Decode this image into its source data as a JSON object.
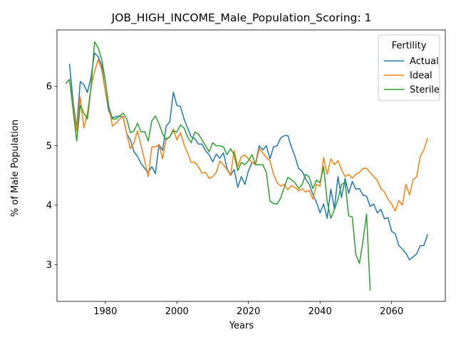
{
  "chart_data": {
    "type": "line",
    "title": "JOB_HIGH_INCOME_Male_Population_Scoring: 1",
    "xlabel": "Years",
    "ylabel": "% of Male Population",
    "xlim": [
      1966.5,
      2075
    ],
    "ylim": [
      2.38,
      6.95
    ],
    "xticks": [
      1980,
      2000,
      2020,
      2040,
      2060
    ],
    "yticks": [
      3,
      4,
      5,
      6
    ],
    "grid": false,
    "legend": {
      "title": "Fertility",
      "placement": "top-right"
    },
    "series": [
      {
        "name": "Actual",
        "color": "#1f77b4",
        "x": [
          1970,
          1971,
          1972,
          1973,
          1974,
          1975,
          1976,
          1977,
          1978,
          1979,
          1980,
          1981,
          1982,
          1983,
          1984,
          1985,
          1986,
          1987,
          1988,
          1989,
          1990,
          1991,
          1992,
          1993,
          1994,
          1995,
          1996,
          1997,
          1998,
          1999,
          2000,
          2001,
          2002,
          2003,
          2004,
          2005,
          2006,
          2007,
          2008,
          2009,
          2010,
          2011,
          2012,
          2013,
          2014,
          2015,
          2016,
          2017,
          2018,
          2019,
          2020,
          2021,
          2022,
          2023,
          2024,
          2025,
          2026,
          2027,
          2028,
          2029,
          2030,
          2031,
          2032,
          2033,
          2034,
          2035,
          2036,
          2037,
          2038,
          2039,
          2040,
          2041,
          2042,
          2043,
          2044,
          2045,
          2046,
          2047,
          2048,
          2049,
          2050,
          2051,
          2052,
          2053,
          2054,
          2055,
          2056,
          2057,
          2058,
          2059,
          2060,
          2061,
          2062,
          2063,
          2064,
          2065,
          2066,
          2067,
          2068,
          2069,
          2070
        ],
        "values": [
          6.37,
          5.75,
          5.3,
          6.08,
          6.03,
          5.9,
          6.15,
          6.56,
          6.5,
          6.35,
          5.92,
          5.58,
          5.47,
          5.49,
          5.5,
          5.48,
          5.2,
          5.1,
          4.9,
          4.82,
          4.7,
          4.62,
          4.55,
          4.65,
          4.53,
          5.02,
          4.92,
          5.33,
          5.4,
          5.9,
          5.68,
          5.66,
          5.45,
          5.3,
          5.15,
          5.12,
          5.03,
          5.03,
          4.92,
          4.85,
          4.73,
          4.86,
          4.79,
          4.88,
          4.62,
          4.5,
          4.6,
          4.3,
          4.48,
          4.35,
          4.58,
          4.72,
          4.7,
          5.0,
          4.93,
          5.0,
          4.78,
          4.98,
          5.0,
          5.13,
          5.17,
          5.17,
          4.98,
          4.82,
          4.62,
          4.57,
          4.44,
          4.35,
          4.18,
          4.05,
          3.87,
          4.02,
          3.78,
          4.27,
          3.94,
          4.48,
          4.13,
          4.45,
          4.2,
          4.4,
          4.27,
          4.28,
          4.17,
          4.15,
          3.98,
          4.02,
          3.87,
          3.93,
          3.77,
          3.79,
          3.56,
          3.52,
          3.32,
          3.26,
          3.19,
          3.08,
          3.13,
          3.18,
          3.32,
          3.32,
          3.5
        ]
      },
      {
        "name": "Ideal",
        "color": "#ff7f0e",
        "x": [
          1970,
          1971,
          1972,
          1973,
          1974,
          1975,
          1976,
          1977,
          1978,
          1979,
          1980,
          1981,
          1982,
          1983,
          1984,
          1985,
          1986,
          1987,
          1988,
          1989,
          1990,
          1991,
          1992,
          1993,
          1994,
          1995,
          1996,
          1997,
          1998,
          1999,
          2000,
          2001,
          2002,
          2003,
          2004,
          2005,
          2006,
          2007,
          2008,
          2009,
          2010,
          2011,
          2012,
          2013,
          2014,
          2015,
          2016,
          2017,
          2018,
          2019,
          2020,
          2021,
          2022,
          2023,
          2024,
          2025,
          2026,
          2027,
          2028,
          2029,
          2030,
          2031,
          2032,
          2033,
          2034,
          2035,
          2036,
          2037,
          2038,
          2039,
          2040,
          2041,
          2042,
          2043,
          2044,
          2045,
          2046,
          2047,
          2048,
          2049,
          2050,
          2051,
          2052,
          2053,
          2054,
          2055,
          2056,
          2057,
          2058,
          2059,
          2060,
          2061,
          2062,
          2063,
          2064,
          2065,
          2066,
          2067,
          2068,
          2069,
          2070
        ],
        "values": [
          6.1,
          5.68,
          5.25,
          5.82,
          5.3,
          5.55,
          5.98,
          6.25,
          6.45,
          6.28,
          5.92,
          5.65,
          5.33,
          5.38,
          5.45,
          5.5,
          5.2,
          4.95,
          5.05,
          5.25,
          5.0,
          4.75,
          4.48,
          4.98,
          4.98,
          5.02,
          4.78,
          5.12,
          5.15,
          5.28,
          5.1,
          5.22,
          5.02,
          4.88,
          4.72,
          4.72,
          4.65,
          4.54,
          4.55,
          4.45,
          4.48,
          4.55,
          4.74,
          4.68,
          4.6,
          4.5,
          4.92,
          4.65,
          4.82,
          4.84,
          4.78,
          4.72,
          4.68,
          4.95,
          4.88,
          4.8,
          4.75,
          4.52,
          4.38,
          4.32,
          4.35,
          4.26,
          4.33,
          4.3,
          4.24,
          4.28,
          4.22,
          4.25,
          4.1,
          4.35,
          4.32,
          4.8,
          4.52,
          4.78,
          4.68,
          4.75,
          4.6,
          4.48,
          4.52,
          4.45,
          4.52,
          4.55,
          4.62,
          4.62,
          4.55,
          4.48,
          4.42,
          4.28,
          4.22,
          4.1,
          4.02,
          3.9,
          4.08,
          4.0,
          4.35,
          4.17,
          4.43,
          4.48,
          4.82,
          4.93,
          5.12
        ]
      },
      {
        "name": "Sterile",
        "color": "#2ca02c",
        "x": [
          1969,
          1970,
          1971,
          1972,
          1973,
          1974,
          1975,
          1976,
          1977,
          1978,
          1979,
          1980,
          1981,
          1982,
          1983,
          1984,
          1985,
          1986,
          1987,
          1988,
          1989,
          1990,
          1991,
          1992,
          1993,
          1994,
          1995,
          1996,
          1997,
          1998,
          1999,
          2000,
          2001,
          2002,
          2003,
          2004,
          2005,
          2006,
          2007,
          2008,
          2009,
          2010,
          2011,
          2012,
          2013,
          2014,
          2015,
          2016,
          2017,
          2018,
          2019,
          2020,
          2021,
          2022,
          2023,
          2024,
          2025,
          2026,
          2027,
          2028,
          2029,
          2030,
          2031,
          2032,
          2033,
          2034,
          2035,
          2036,
          2037,
          2038,
          2039,
          2040,
          2041,
          2042,
          2043,
          2044,
          2045,
          2046,
          2047,
          2048,
          2049,
          2050,
          2051,
          2052,
          2053,
          2054
        ],
        "values": [
          6.05,
          6.12,
          5.6,
          5.08,
          5.68,
          5.55,
          5.45,
          5.98,
          6.75,
          6.65,
          6.45,
          6.1,
          5.65,
          5.45,
          5.45,
          5.5,
          5.55,
          5.45,
          5.22,
          5.25,
          5.38,
          5.23,
          5.24,
          5.08,
          5.42,
          5.5,
          5.37,
          5.2,
          5.1,
          5.15,
          5.25,
          5.23,
          5.35,
          5.3,
          5.15,
          5.05,
          5.23,
          5.2,
          5.1,
          5.0,
          4.9,
          5.05,
          5.0,
          5.0,
          4.98,
          4.85,
          4.95,
          4.85,
          4.58,
          4.72,
          4.68,
          4.75,
          4.85,
          4.68,
          4.68,
          4.68,
          4.55,
          4.07,
          4.03,
          4.02,
          4.12,
          4.3,
          4.47,
          4.43,
          4.38,
          4.28,
          4.35,
          4.52,
          4.47,
          4.28,
          4.42,
          4.38,
          4.65,
          4.05,
          3.78,
          3.92,
          4.1,
          4.35,
          4.38,
          3.82,
          3.8,
          3.17,
          3.02,
          3.4,
          3.85,
          2.57
        ]
      }
    ]
  }
}
